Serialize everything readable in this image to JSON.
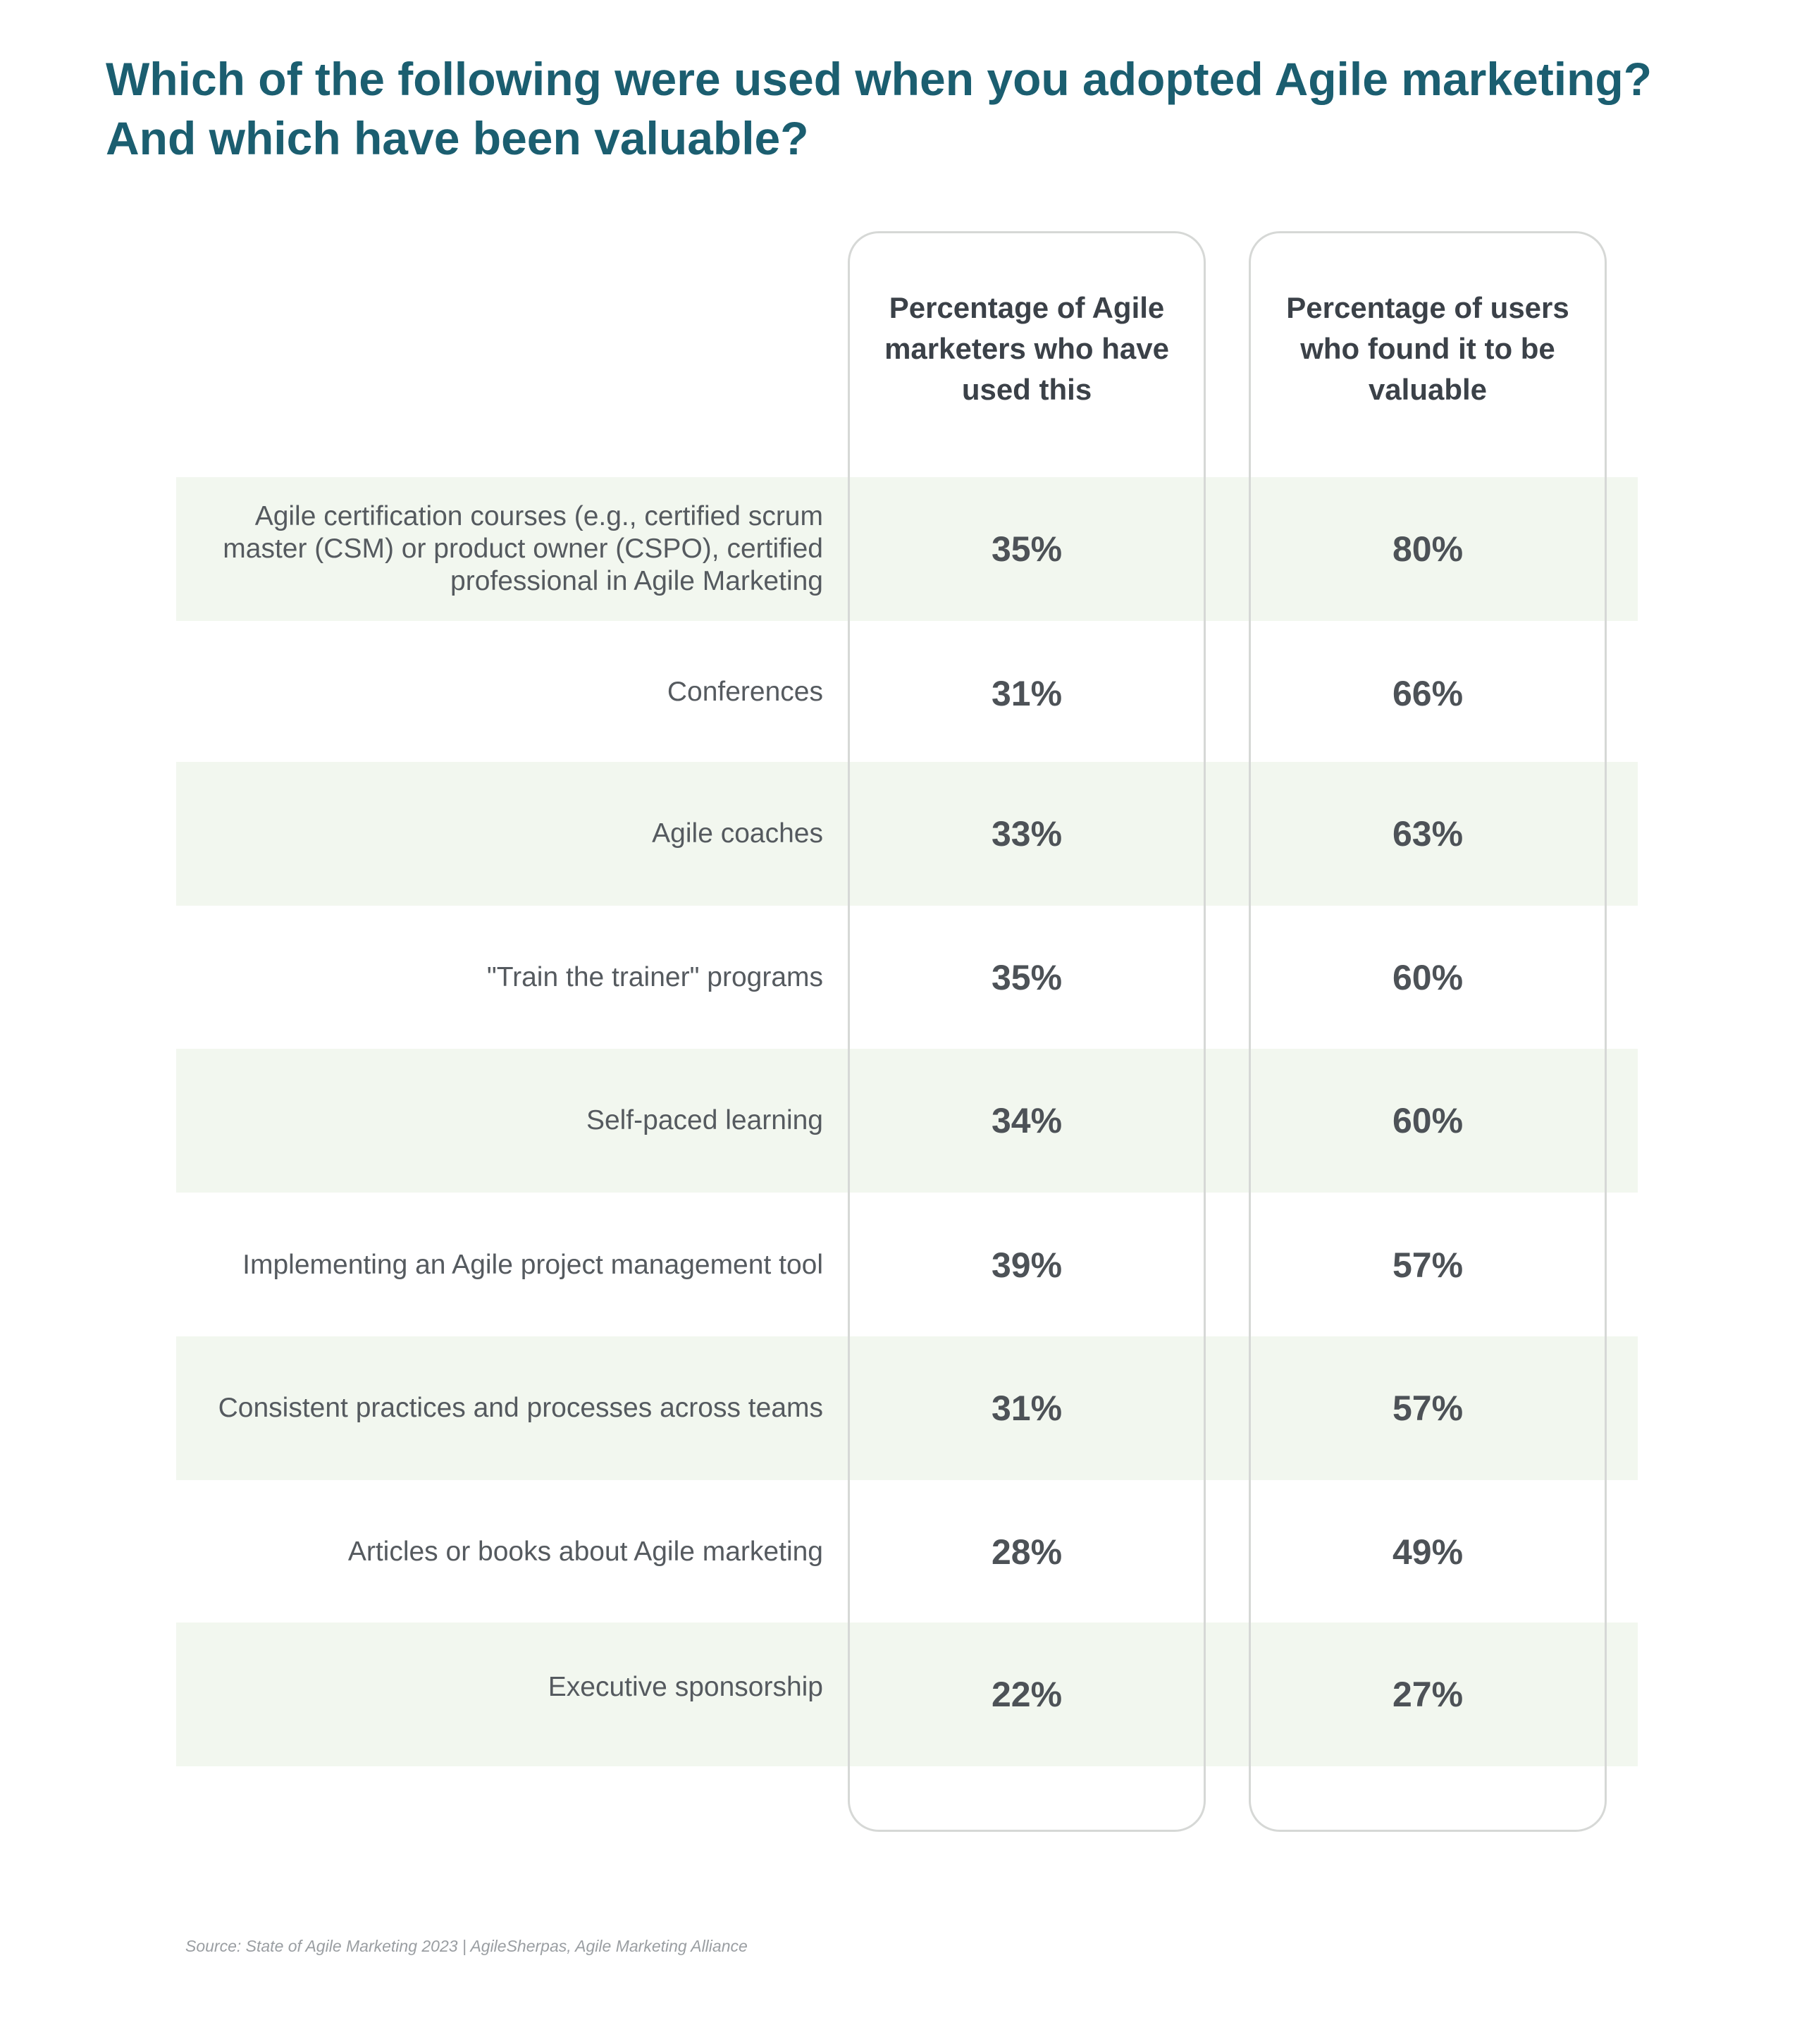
{
  "title": "Which of the following were used when you adopted Agile marketing? And which have been valuable?",
  "chart_data": {
    "type": "table",
    "title": "Which of the following were used when you adopted Agile marketing? And which have been valuable?",
    "columns": [
      "Percentage of Agile marketers who have used this",
      "Percentage of users who found it to be valuable"
    ],
    "rows": [
      {
        "label": "Agile certification courses (e.g., certified scrum master (CSM) or product owner (CSPO), certified professional in Agile Marketing",
        "used": "35%",
        "valuable": "80%"
      },
      {
        "label": "Conferences",
        "used": "31%",
        "valuable": "66%"
      },
      {
        "label": "Agile coaches",
        "used": "33%",
        "valuable": "63%"
      },
      {
        "label": "\"Train the trainer\" programs",
        "used": "35%",
        "valuable": "60%"
      },
      {
        "label": "Self-paced learning",
        "used": "34%",
        "valuable": "60%"
      },
      {
        "label": "Implementing an Agile project management tool",
        "used": "39%",
        "valuable": "57%"
      },
      {
        "label": "Consistent practices and processes across teams",
        "used": "31%",
        "valuable": "57%"
      },
      {
        "label": "Articles or books about Agile marketing",
        "used": "28%",
        "valuable": "49%"
      },
      {
        "label": "Executive sponsorship",
        "used": "22%",
        "valuable": "27%"
      }
    ]
  },
  "source": "Source: State of Agile Marketing 2023 | AgileSherpas, Agile Marketing Alliance",
  "colors": {
    "title": "#1b5e70",
    "row_shade": "#f2f7ef",
    "frame": "#d6d8d6",
    "text": "#555a5f",
    "value": "#4d5257"
  }
}
